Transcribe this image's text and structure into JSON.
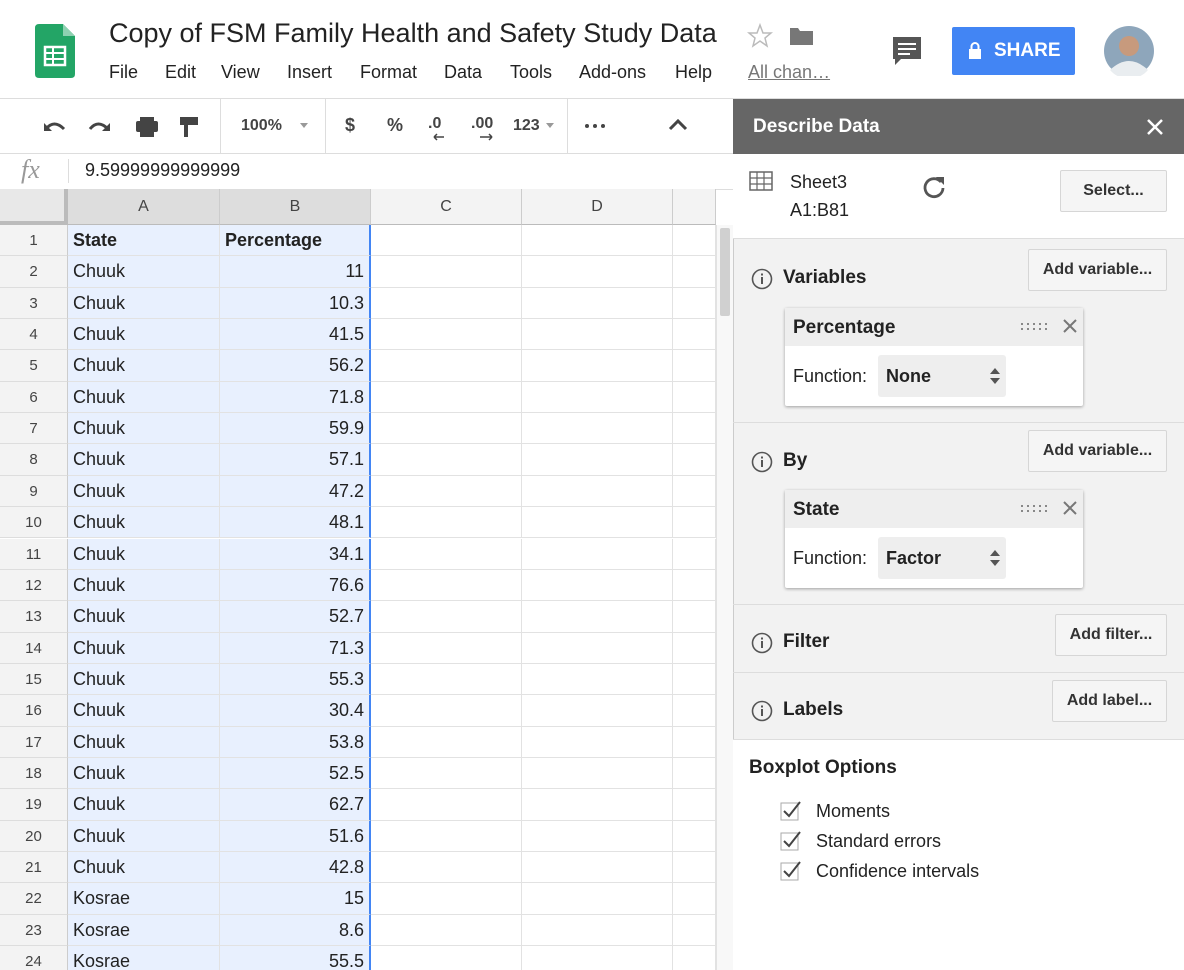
{
  "header": {
    "title": "Copy of FSM Family Health and Safety Study Data",
    "menu": [
      "File",
      "Edit",
      "View",
      "Insert",
      "Format",
      "Data",
      "Tools",
      "Add-ons",
      "Help"
    ],
    "last_edit": "All chan…",
    "share": "SHARE"
  },
  "toolbar": {
    "zoom": "100%",
    "currency": "$",
    "percent": "%",
    "decrease_decimals": ".0",
    "increase_decimals": ".00",
    "more_formats": "123"
  },
  "formula_bar": {
    "label": "fx",
    "value": "9.59999999999999"
  },
  "sheet": {
    "columns": [
      "A",
      "B",
      "C",
      "D"
    ],
    "row_numbers": [
      1,
      2,
      3,
      4,
      5,
      6,
      7,
      8,
      9,
      10,
      11,
      12,
      13,
      14,
      15,
      16,
      17,
      18,
      19,
      20,
      21,
      22,
      23,
      24
    ],
    "rows": [
      [
        "State",
        "Percentage"
      ],
      [
        "Chuuk",
        11
      ],
      [
        "Chuuk",
        10.3
      ],
      [
        "Chuuk",
        41.5
      ],
      [
        "Chuuk",
        56.2
      ],
      [
        "Chuuk",
        71.8
      ],
      [
        "Chuuk",
        59.9
      ],
      [
        "Chuuk",
        57.1
      ],
      [
        "Chuuk",
        47.2
      ],
      [
        "Chuuk",
        48.1
      ],
      [
        "Chuuk",
        34.1
      ],
      [
        "Chuuk",
        76.6
      ],
      [
        "Chuuk",
        52.7
      ],
      [
        "Chuuk",
        71.3
      ],
      [
        "Chuuk",
        55.3
      ],
      [
        "Chuuk",
        30.4
      ],
      [
        "Chuuk",
        53.8
      ],
      [
        "Chuuk",
        52.5
      ],
      [
        "Chuuk",
        62.7
      ],
      [
        "Chuuk",
        51.6
      ],
      [
        "Chuuk",
        42.8
      ],
      [
        "Kosrae",
        15
      ],
      [
        "Kosrae",
        8.6
      ],
      [
        "Kosrae",
        55.5
      ]
    ]
  },
  "panel": {
    "title": "Describe Data",
    "sheet_name": "Sheet3",
    "range": "A1:B81",
    "select_button": "Select...",
    "variables": {
      "title": "Variables",
      "button": "Add variable...",
      "card": {
        "name": "Percentage",
        "function_label": "Function:",
        "function": "None"
      }
    },
    "by": {
      "title": "By",
      "button": "Add variable...",
      "card": {
        "name": "State",
        "function_label": "Function:",
        "function": "Factor"
      }
    },
    "filter": {
      "title": "Filter",
      "button": "Add filter..."
    },
    "labels": {
      "title": "Labels",
      "button": "Add label..."
    },
    "boxplot": {
      "title": "Boxplot Options",
      "options": [
        "Moments",
        "Standard errors",
        "Confidence intervals"
      ]
    }
  }
}
